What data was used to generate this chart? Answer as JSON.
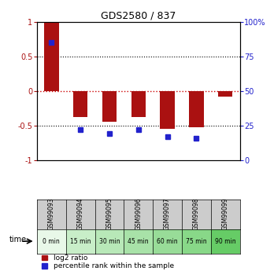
{
  "title": "GDS2580 / 837",
  "samples": [
    "GSM99093",
    "GSM99094",
    "GSM99095",
    "GSM99096",
    "GSM99097",
    "GSM99098",
    "GSM99099"
  ],
  "time_labels": [
    "0 min",
    "15 min",
    "30 min",
    "45 min",
    "60 min",
    "75 min",
    "90 min"
  ],
  "log2_ratio": [
    1.0,
    -0.38,
    -0.45,
    -0.38,
    -0.55,
    -0.52,
    -0.08
  ],
  "percentile_rank_pct": [
    85,
    22,
    19,
    22,
    17,
    16,
    null
  ],
  "bar_color": "#aa1111",
  "dot_color": "#2222cc",
  "ylim_left": [
    -1,
    1
  ],
  "ylim_right": [
    0,
    100
  ],
  "yticks_left": [
    -1,
    -0.5,
    0,
    0.5,
    1
  ],
  "yticks_right": [
    0,
    25,
    50,
    75,
    100
  ],
  "bg_color": "#ffffff",
  "zero_line_color": "#cc0000",
  "time_row_colors": [
    "#e8f8e8",
    "#c8eec8",
    "#b8e8b8",
    "#a8e2a8",
    "#98dc98",
    "#88d888",
    "#66cc66"
  ],
  "sample_row_color": "#cccccc",
  "legend_items": [
    "log2 ratio",
    "percentile rank within the sample"
  ],
  "bar_width": 0.5,
  "dot_size": 5
}
